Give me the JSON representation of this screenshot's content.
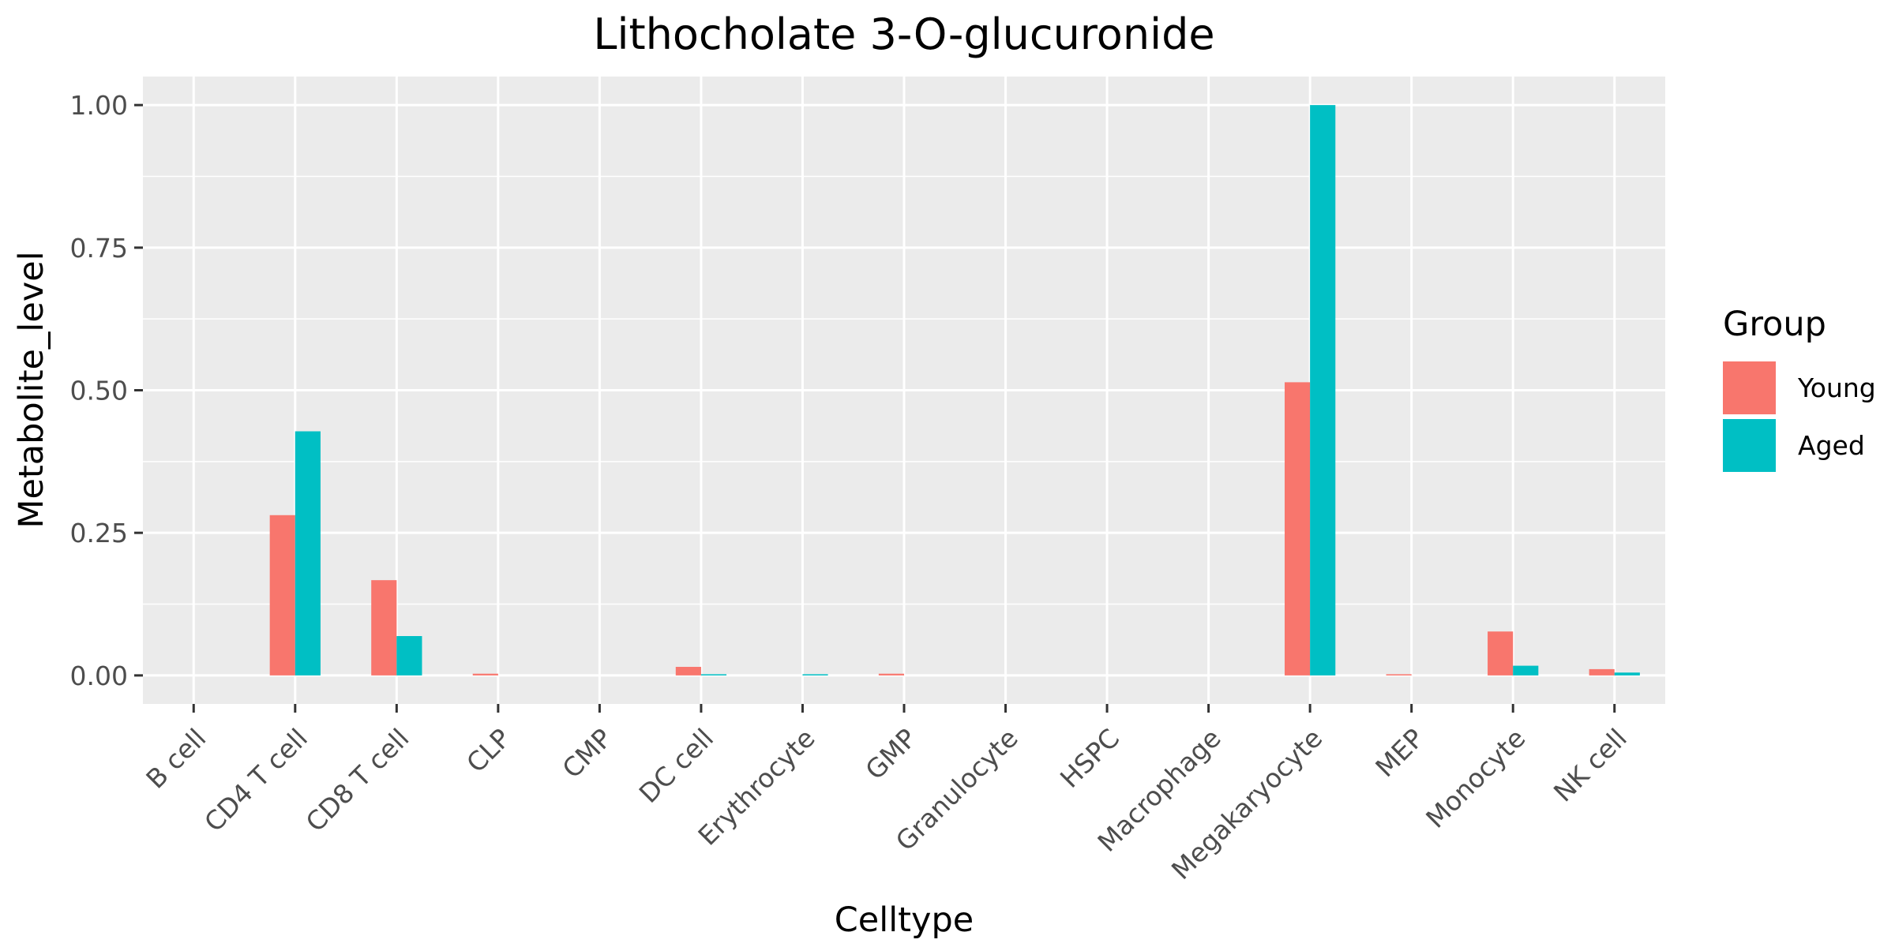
{
  "chart_data": {
    "type": "bar",
    "title": "Lithocholate 3-O-glucuronide",
    "xlabel": "Celltype",
    "ylabel": "Metabolite_level",
    "categories": [
      "B cell",
      "CD4 T cell",
      "CD8 T cell",
      "CLP",
      "CMP",
      "DC cell",
      "Erythrocyte",
      "GMP",
      "Granulocyte",
      "HSPC",
      "Macrophage",
      "Megakaryocyte",
      "MEP",
      "Monocyte",
      "NK cell"
    ],
    "series": [
      {
        "name": "Young",
        "color": "#F8766D",
        "values": [
          0,
          0.281,
          0.167,
          0.003,
          0,
          0.015,
          0,
          0.003,
          0,
          0,
          0,
          0.514,
          0.001,
          0.077,
          0.011
        ]
      },
      {
        "name": "Aged",
        "color": "#00BFC4",
        "values": [
          0,
          0.428,
          0.069,
          0,
          0,
          0.002,
          0.002,
          0,
          0,
          0,
          0,
          1.0,
          0,
          0.017,
          0.005
        ]
      }
    ],
    "yticks": [
      "0.00",
      "0.25",
      "0.50",
      "0.75",
      "1.00"
    ],
    "ylim": [
      -0.05,
      1.05
    ],
    "grid": true,
    "legend": {
      "title": "Group",
      "position": "right"
    }
  }
}
